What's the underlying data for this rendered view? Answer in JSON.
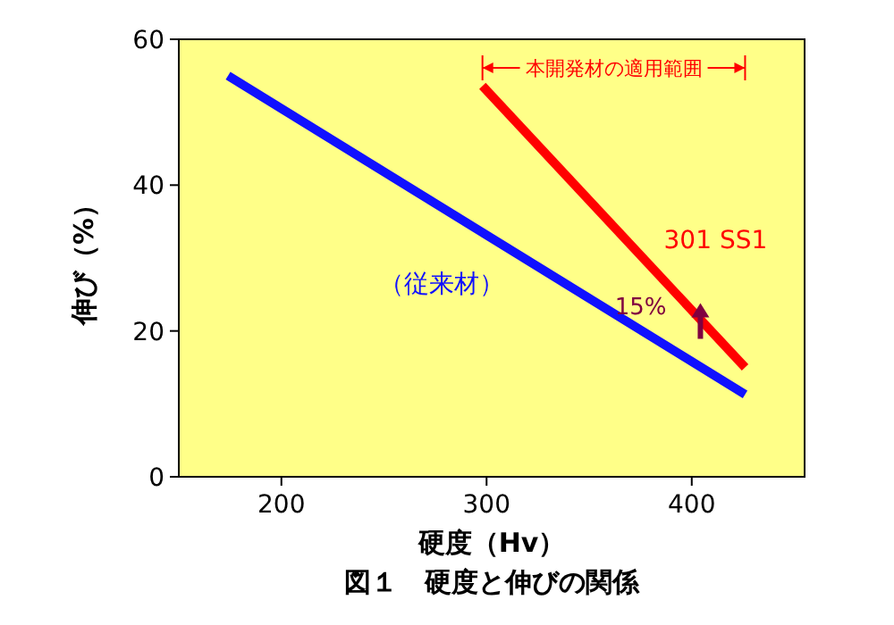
{
  "chart_data": {
    "type": "line",
    "title": "図１　硬度と伸びの関係",
    "xlabel": "硬度（Hv）",
    "ylabel": "伸び（%）",
    "xlim": [
      150,
      455
    ],
    "xticks": [
      200,
      300,
      400
    ],
    "ylim": [
      0,
      60
    ],
    "yticks": [
      0,
      20,
      40,
      60
    ],
    "grid": false,
    "line_style": "solid",
    "series": [
      {
        "name": "（従来材）",
        "color": "#1010ff",
        "x": [
          174,
          426
        ],
        "values": [
          55,
          11.3
        ]
      },
      {
        "name": "301 SS1",
        "color": "#ff0000",
        "x": [
          298,
          426
        ],
        "values": [
          53.6,
          15
        ]
      }
    ],
    "annotations": [
      "本開発材の適用範囲",
      "15%"
    ]
  }
}
